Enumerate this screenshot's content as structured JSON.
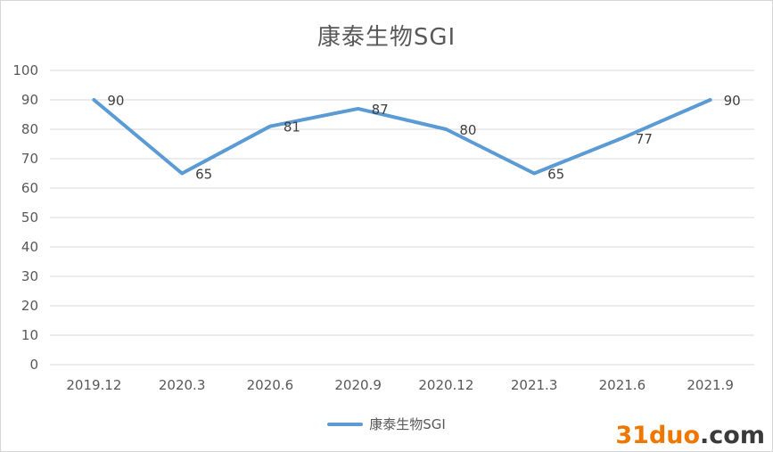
{
  "chart_data": {
    "type": "line",
    "title": "康泰生物SGI",
    "categories": [
      "2019.12",
      "2020.3",
      "2020.6",
      "2020.9",
      "2020.12",
      "2021.3",
      "2021.6",
      "2021.9"
    ],
    "series": [
      {
        "name": "康泰生物SGI",
        "values": [
          90,
          65,
          81,
          87,
          80,
          65,
          77,
          90
        ],
        "color": "#5B9BD5"
      }
    ],
    "xlabel": "",
    "ylabel": "",
    "ylim": [
      0,
      100
    ],
    "y_ticks": [
      0,
      10,
      20,
      30,
      40,
      50,
      60,
      70,
      80,
      90,
      100
    ],
    "grid": true,
    "data_labels": true,
    "legend_position": "bottom"
  },
  "watermark": {
    "brand": "31duo",
    "suffix": ".com",
    "brand_color": "#EE7700",
    "suffix_color": "#3A3A3A"
  },
  "colors": {
    "line": "#5B9BD5",
    "gridline": "#D9D9D9",
    "axis_text": "#595959",
    "data_label_text": "#404040",
    "title_text": "#595959",
    "border": "#D6D6D6"
  }
}
